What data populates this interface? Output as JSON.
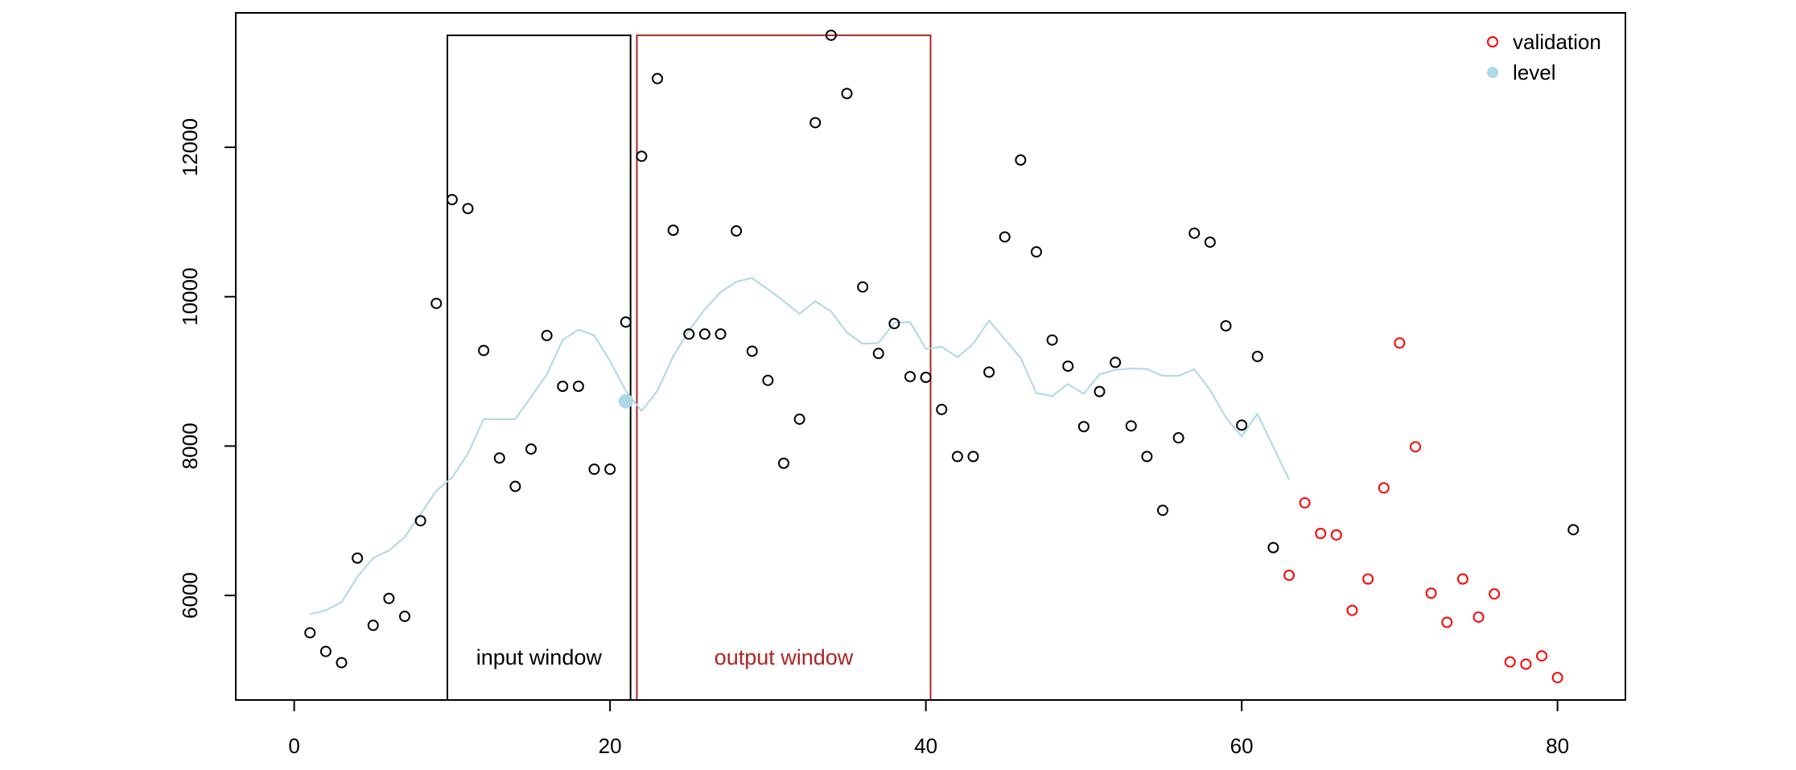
{
  "chart_data": {
    "type": "scatter",
    "title": "",
    "xlabel": "",
    "ylabel": "",
    "xlim": [
      -3.7,
      84.3
    ],
    "ylim": [
      4600,
      13800
    ],
    "x_ticks": [
      0,
      20,
      40,
      60,
      80
    ],
    "y_ticks": [
      6000,
      8000,
      10000,
      12000
    ],
    "grid": false,
    "legend_position": "top-right",
    "colors": {
      "observed": "#000000",
      "validation": "#ff0000",
      "level": "#add8e6",
      "input_window": "#000000",
      "output_window": "#b22222"
    },
    "series": [
      {
        "key": "observed",
        "mark": "open-circle",
        "x": [
          1,
          2,
          3,
          4,
          5,
          6,
          7,
          8,
          9,
          10,
          11,
          12,
          13,
          14,
          15,
          16,
          17,
          18,
          19,
          20,
          21,
          22,
          23,
          24,
          25,
          26,
          27,
          28,
          29,
          30,
          31,
          32,
          33,
          34,
          35,
          36,
          37,
          38,
          39,
          40,
          41,
          42,
          43,
          44,
          45,
          46,
          47,
          48,
          49,
          50,
          51,
          52,
          53,
          54,
          55,
          56,
          57,
          58,
          59,
          60,
          61,
          62,
          81
        ],
        "y": [
          5500,
          5250,
          5100,
          6500,
          5600,
          5960,
          5720,
          7000,
          9910,
          11300,
          11180,
          9280,
          7840,
          7460,
          7960,
          9480,
          8800,
          8800,
          7690,
          7690,
          9660,
          11880,
          12920,
          10890,
          9500,
          9500,
          9500,
          10880,
          9270,
          8880,
          7770,
          8360,
          12330,
          13500,
          12720,
          10130,
          9240,
          9640,
          8930,
          8920,
          8490,
          7860,
          7860,
          8990,
          10800,
          11830,
          10600,
          9420,
          9070,
          8260,
          8730,
          9120,
          8270,
          7860,
          7140,
          8110,
          10850,
          10730,
          9610,
          8280,
          9200,
          6640,
          6880
        ]
      },
      {
        "key": "validation",
        "name": "validation",
        "mark": "open-circle",
        "x": [
          63,
          64,
          65,
          66,
          67,
          68,
          69,
          70,
          71,
          72,
          73,
          74,
          75,
          76,
          77,
          78,
          79,
          80
        ],
        "y": [
          6270,
          7240,
          6830,
          6810,
          5800,
          6220,
          7440,
          9380,
          7990,
          6030,
          5640,
          6220,
          5710,
          6020,
          5110,
          5080,
          5190,
          4900
        ]
      },
      {
        "key": "level",
        "name": "level",
        "mark": "line",
        "x": [
          1,
          2,
          3,
          4,
          5,
          6,
          7,
          8,
          9,
          10,
          11,
          12,
          13,
          14,
          15,
          16,
          17,
          18,
          19,
          20,
          21,
          22,
          23,
          24,
          25,
          26,
          27,
          28,
          29,
          30,
          31,
          32,
          33,
          34,
          35,
          36,
          37,
          38,
          39,
          40,
          41,
          42,
          43,
          44,
          45,
          46,
          47,
          48,
          49,
          50,
          51,
          52,
          53,
          54,
          55,
          56,
          57,
          58,
          59,
          60,
          61,
          62,
          63
        ],
        "y": [
          5750,
          5800,
          5910,
          6250,
          6500,
          6600,
          6780,
          7090,
          7400,
          7580,
          7900,
          8360,
          8360,
          8360,
          8660,
          8960,
          9420,
          9560,
          9480,
          9140,
          8740,
          8470,
          8740,
          9200,
          9550,
          9830,
          10060,
          10200,
          10250,
          10100,
          9940,
          9770,
          9940,
          9800,
          9520,
          9370,
          9380,
          9650,
          9660,
          9300,
          9330,
          9190,
          9370,
          9680,
          9430,
          9180,
          8710,
          8670,
          8830,
          8700,
          8960,
          9020,
          9040,
          9030,
          8940,
          8940,
          9030,
          8750,
          8380,
          8130,
          8430,
          7990,
          7550
        ]
      },
      {
        "key": "level_point",
        "mark": "filled-circle",
        "x": [
          21
        ],
        "y": [
          8600
        ]
      }
    ],
    "windows": [
      {
        "key": "input",
        "label": "input window",
        "x0": 9.7,
        "x1": 21.3,
        "y0": 4600,
        "y1": 13500
      },
      {
        "key": "output",
        "label": "output window",
        "x0": 21.7,
        "x1": 40.3,
        "y0": 4600,
        "y1": 13500
      }
    ],
    "legend": [
      {
        "key": "validation",
        "label": "validation",
        "mark": "open-circle"
      },
      {
        "key": "level",
        "label": "level",
        "mark": "filled-circle"
      }
    ]
  }
}
